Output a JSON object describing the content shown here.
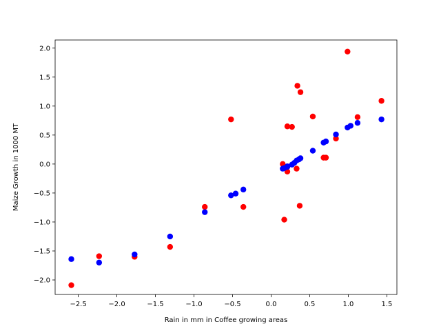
{
  "chart_data": {
    "type": "scatter",
    "title": "",
    "xlabel": "Rain in mm in Coffee growing areas",
    "ylabel": "Maize Growth in 1000 MT",
    "xlim": [
      -2.8,
      1.63
    ],
    "ylim": [
      -2.25,
      2.14
    ],
    "xticks": [
      -2.5,
      -2.0,
      -1.5,
      -1.0,
      -0.5,
      0.0,
      0.5,
      1.0,
      1.5
    ],
    "xtick_labels": [
      "−2.5",
      "−2.0",
      "−1.5",
      "−1.0",
      "−0.5",
      "0.0",
      "0.5",
      "1.0",
      "1.5"
    ],
    "yticks": [
      -2.0,
      -1.5,
      -1.0,
      -0.5,
      0.0,
      0.5,
      1.0,
      1.5,
      2.0
    ],
    "ytick_labels": [
      "−2.0",
      "−1.5",
      "−1.0",
      "−0.5",
      "0.0",
      "0.5",
      "1.0",
      "1.5",
      "2.0"
    ],
    "grid": false,
    "legend": "none",
    "series": [
      {
        "color": "#ff0000",
        "points": [
          [
            -2.59,
            -2.09
          ],
          [
            -2.23,
            -1.59
          ],
          [
            -1.77,
            -1.6
          ],
          [
            -1.31,
            -1.43
          ],
          [
            -0.86,
            -0.74
          ],
          [
            -0.52,
            0.77
          ],
          [
            -0.36,
            -0.74
          ],
          [
            0.15,
            0.0
          ],
          [
            0.17,
            -0.96
          ],
          [
            0.21,
            0.65
          ],
          [
            0.21,
            -0.13
          ],
          [
            0.27,
            0.64
          ],
          [
            0.33,
            -0.08
          ],
          [
            0.34,
            1.35
          ],
          [
            0.37,
            -0.72
          ],
          [
            0.38,
            1.24
          ],
          [
            0.54,
            0.82
          ],
          [
            0.68,
            0.11
          ],
          [
            0.71,
            0.11
          ],
          [
            0.84,
            0.44
          ],
          [
            0.99,
            1.94
          ],
          [
            1.12,
            0.81
          ],
          [
            1.43,
            1.09
          ]
        ]
      },
      {
        "color": "#0000ff",
        "points": [
          [
            -2.59,
            -1.64
          ],
          [
            -2.23,
            -1.7
          ],
          [
            -1.77,
            -1.56
          ],
          [
            -1.31,
            -1.25
          ],
          [
            -0.86,
            -0.83
          ],
          [
            -0.52,
            -0.54
          ],
          [
            -0.46,
            -0.51
          ],
          [
            -0.36,
            -0.44
          ],
          [
            0.15,
            -0.08
          ],
          [
            0.17,
            -0.07
          ],
          [
            0.21,
            -0.05
          ],
          [
            0.21,
            -0.04
          ],
          [
            0.27,
            -0.01
          ],
          [
            0.3,
            0.02
          ],
          [
            0.33,
            0.06
          ],
          [
            0.36,
            0.08
          ],
          [
            0.38,
            0.1
          ],
          [
            0.54,
            0.23
          ],
          [
            0.68,
            0.37
          ],
          [
            0.71,
            0.39
          ],
          [
            0.84,
            0.51
          ],
          [
            0.99,
            0.63
          ],
          [
            1.03,
            0.66
          ],
          [
            1.12,
            0.71
          ],
          [
            1.43,
            0.77
          ]
        ]
      }
    ]
  }
}
